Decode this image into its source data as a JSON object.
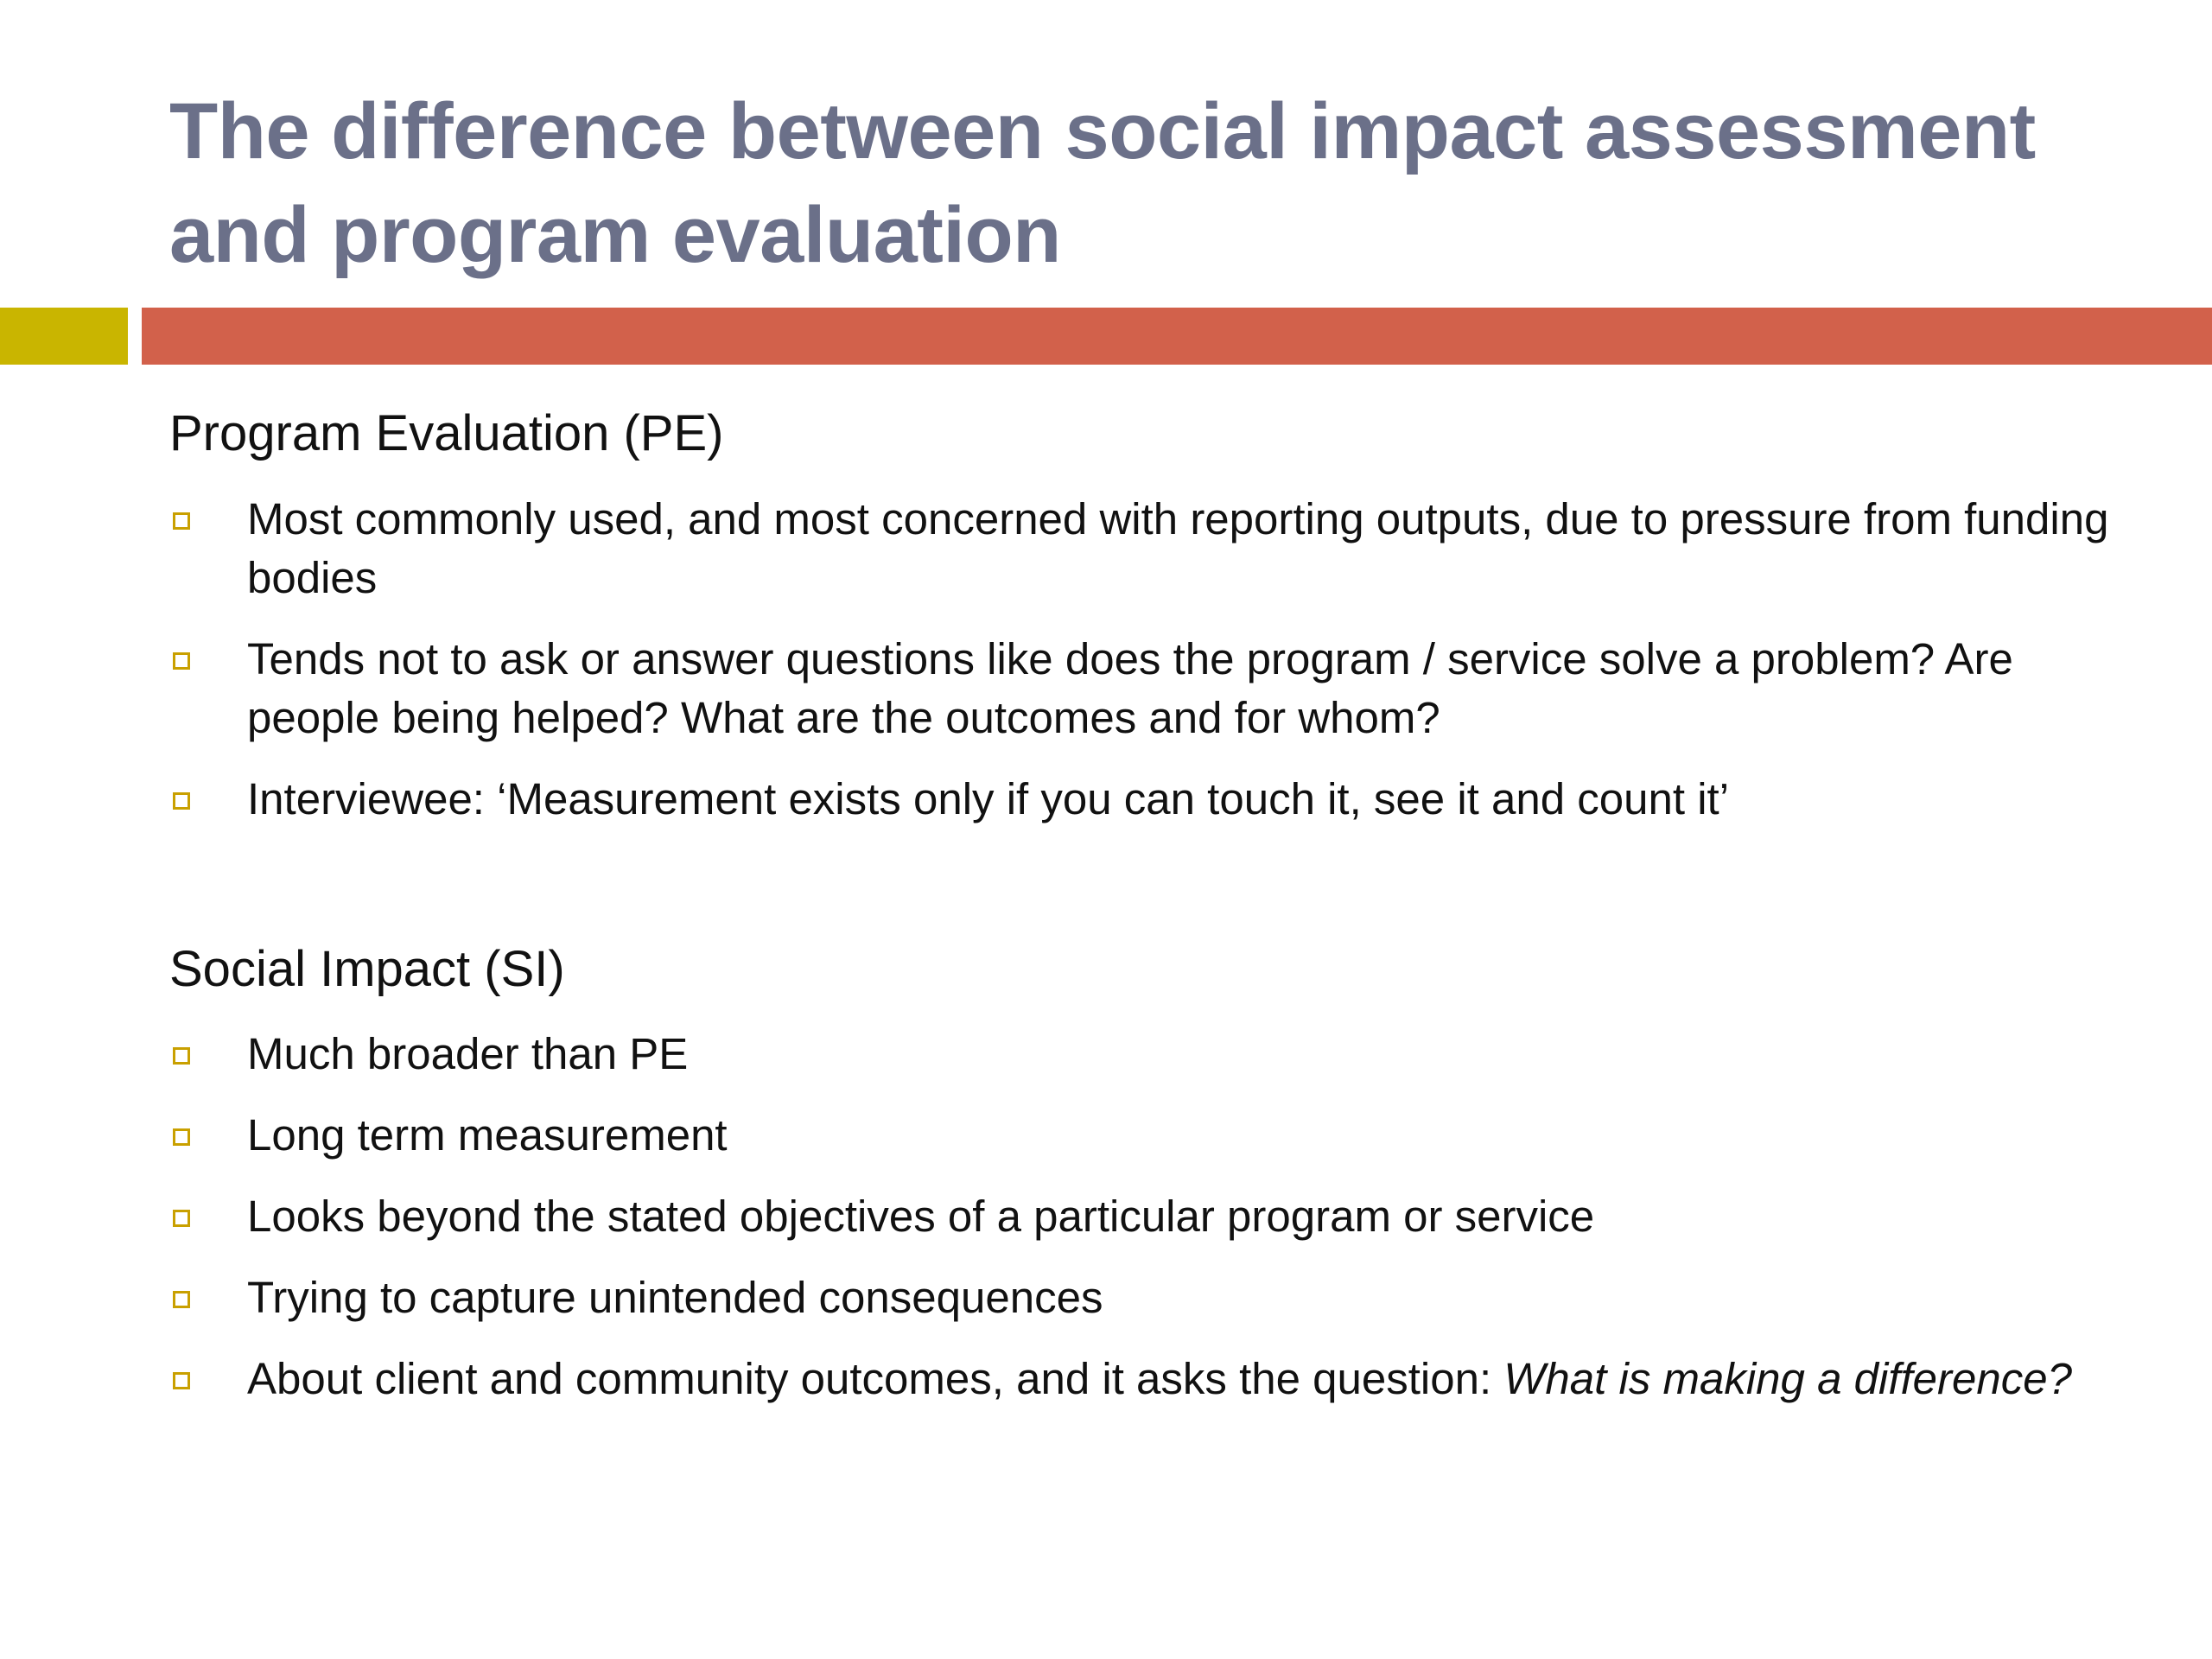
{
  "slide": {
    "title": "The difference between social impact assessment and program evaluation"
  },
  "colors": {
    "title": "#6b7089",
    "accent_square": "#c9b500",
    "accent_bar": "#d2614b",
    "bullet_marker": "#c9a000"
  },
  "sections": [
    {
      "heading": "Program Evaluation (PE)",
      "bullets": [
        {
          "text": "Most commonly used, and most concerned with reporting outputs, due to pressure from funding bodies"
        },
        {
          "text": "Tends not to ask or answer questions like does the program / service solve a problem? Are people being helped? What are the outcomes and for whom?"
        },
        {
          "text": "Interviewee: ‘Measurement exists only if you can touch it, see it and count it’"
        }
      ]
    },
    {
      "heading": "Social Impact (SI)",
      "bullets": [
        {
          "text": "Much broader than PE"
        },
        {
          "text": "Long term measurement"
        },
        {
          "text": "Looks beyond the stated objectives of a particular program or service"
        },
        {
          "text": "Trying to capture unintended consequences"
        },
        {
          "text": "About client and community outcomes, and it asks the question: ",
          "italic": "What is making a difference?"
        }
      ]
    }
  ]
}
